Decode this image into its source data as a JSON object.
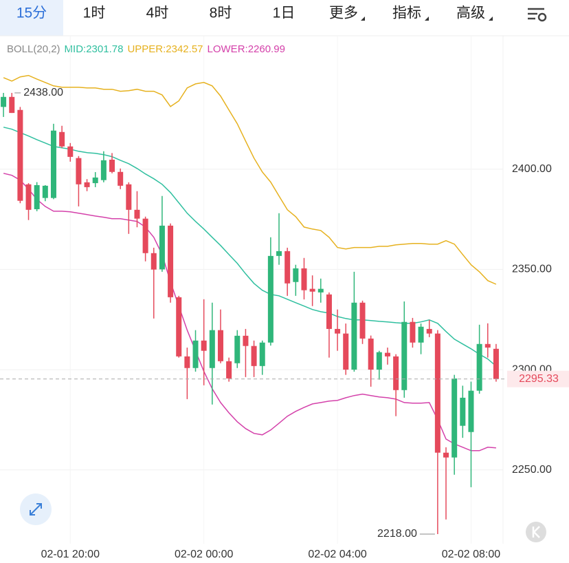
{
  "tabs": [
    "15分",
    "1时",
    "4时",
    "8时",
    "1日",
    "更多",
    "指标",
    "高级"
  ],
  "chart_data": {
    "type": "candlestick",
    "indicator": {
      "title": "BOLL(20,2)",
      "series": [
        {
          "name": "MID:2301.78",
          "color": "#2fbf9f",
          "values": [
            2420.9,
            2419.9,
            2418.2,
            2416.5,
            2414.7,
            2413.0,
            2411.3,
            2410.6,
            2409.9,
            2408.9,
            2408.2,
            2407.9,
            2407.2,
            2406.2,
            2404.4,
            2402.7,
            2400.3,
            2397.6,
            2395.2,
            2392.4,
            2388.3,
            2383.2,
            2378.0,
            2373.9,
            2370.1,
            2366.0,
            2361.9,
            2357.4,
            2353.0,
            2347.8,
            2343.0,
            2339.6,
            2337.5,
            2336.8,
            2335.1,
            2333.4,
            2331.7,
            2330.0,
            2328.9,
            2328.2,
            2326.5,
            2325.5,
            2324.8,
            2324.8,
            2324.5,
            2324.1,
            2323.8,
            2323.4,
            2323.1,
            2323.1,
            2323.8,
            2324.8,
            2323.1,
            2319.0,
            2315.2,
            2312.8,
            2310.4,
            2307.7,
            2305.3,
            2301.78
          ]
        },
        {
          "name": "UPPER:2342.57",
          "color": "#e6b11e",
          "values": [
            2445.6,
            2443.9,
            2446.0,
            2446.7,
            2444.9,
            2443.2,
            2441.5,
            2440.8,
            2440.8,
            2440.8,
            2440.5,
            2440.5,
            2439.8,
            2439.8,
            2438.8,
            2439.1,
            2439.8,
            2438.8,
            2438.8,
            2437.0,
            2431.2,
            2434.0,
            2440.5,
            2442.5,
            2443.2,
            2441.5,
            2436.4,
            2429.5,
            2422.6,
            2414.0,
            2405.5,
            2398.6,
            2393.5,
            2386.6,
            2379.7,
            2376.3,
            2371.1,
            2370.1,
            2369.4,
            2366.0,
            2360.9,
            2360.2,
            2360.9,
            2360.9,
            2360.9,
            2361.5,
            2361.5,
            2362.2,
            2362.6,
            2362.9,
            2362.9,
            2362.6,
            2362.6,
            2364.3,
            2362.6,
            2357.4,
            2352.3,
            2348.8,
            2344.4,
            2342.57
          ]
        },
        {
          "name": "LOWER:2260.99",
          "color": "#d441aa",
          "values": [
            2397.9,
            2396.9,
            2394.5,
            2390.0,
            2384.9,
            2381.4,
            2379.0,
            2379.0,
            2378.7,
            2378.0,
            2377.3,
            2376.6,
            2376.0,
            2375.3,
            2375.3,
            2374.6,
            2373.9,
            2371.1,
            2366.0,
            2357.4,
            2343.7,
            2331.7,
            2319.7,
            2309.4,
            2299.1,
            2290.5,
            2283.6,
            2278.5,
            2274.0,
            2270.6,
            2268.2,
            2267.5,
            2269.9,
            2273.3,
            2276.8,
            2279.2,
            2281.2,
            2282.9,
            2283.6,
            2284.3,
            2284.7,
            2286.0,
            2287.1,
            2287.8,
            2287.1,
            2286.4,
            2286.0,
            2285.3,
            2283.6,
            2283.3,
            2283.3,
            2283.6,
            2275.1,
            2265.4,
            2263.0,
            2261.3,
            2259.6,
            2259.6,
            2261.3,
            2260.99
          ]
        }
      ]
    },
    "categories": [
      null,
      null,
      null,
      null,
      null,
      null,
      null,
      null,
      "02-01 20:00",
      null,
      null,
      null,
      null,
      null,
      null,
      null,
      null,
      null,
      null,
      null,
      null,
      null,
      null,
      null,
      "02-02 00:00",
      null,
      null,
      null,
      null,
      null,
      null,
      null,
      null,
      null,
      null,
      null,
      null,
      null,
      null,
      null,
      "02-02 04:00",
      null,
      null,
      null,
      null,
      null,
      null,
      null,
      null,
      null,
      null,
      null,
      null,
      null,
      null,
      null,
      "02-02 08:00",
      null,
      null,
      null
    ],
    "open": [
      2431,
      2436,
      2429.5,
      2392.4,
      2380,
      2385.6,
      2385.6,
      2418.5,
      2411.3,
      2405.5,
      2393.4,
      2393,
      2394.5,
      2404.7,
      2398.6,
      2392.4,
      2379.7,
      2375.3,
      2358.1,
      2350,
      2371.8,
      2336.1,
      2306.6,
      2300.8,
      2314.5,
      2300.8,
      2319.7,
      2304.2,
      2303.2,
      2316.9,
      2311.8,
      2301.8,
      2313.5,
      2356.7,
      2359.1,
      2343.7,
      2350.5,
      2340.3,
      2338.5,
      2337.5,
      2320.3,
      2318,
      2300,
      2333.4,
      2315.5,
      2300,
      2308.4,
      2306.6,
      2289.8,
      2323.8,
      2313.5,
      2320.3,
      2318,
      2258.6,
      2256.2,
      2272,
      2268.9,
      2289.5,
      2312.8,
      2310.4
    ],
    "high": [
      2438,
      2438,
      2431,
      2393,
      2393.5,
      2392,
      2422.6,
      2421.6,
      2413,
      2406.5,
      2395,
      2398.5,
      2408.9,
      2408,
      2400.3,
      2393.4,
      2389,
      2376.3,
      2360.8,
      2386.6,
      2372.9,
      2336.8,
      2311,
      2319.7,
      2335.1,
      2333.4,
      2330,
      2306,
      2319.7,
      2320.3,
      2314.5,
      2314.5,
      2366,
      2378,
      2360.8,
      2352.3,
      2355.7,
      2347,
      2345.4,
      2338.5,
      2330,
      2323,
      2348.8,
      2334.4,
      2317,
      2309.4,
      2311,
      2307.7,
      2334,
      2325.8,
      2323,
      2324.8,
      2319.7,
      2261.3,
      2297.4,
      2292,
      2294,
      2322.4,
      2323.1,
      2312.8
    ],
    "low": [
      2426,
      2428,
      2383,
      2374.6,
      2379,
      2384,
      2385,
      2410.6,
      2403.7,
      2381.4,
      2389,
      2391,
      2393.4,
      2397.9,
      2390,
      2367.7,
      2371,
      2354,
      2325.5,
      2348.8,
      2333.4,
      2306,
      2285.3,
      2299,
      2292.2,
      2282.6,
      2303.2,
      2294,
      2300.8,
      2296.3,
      2296.3,
      2297.4,
      2312,
      2352.3,
      2336.8,
      2336.8,
      2335,
      2331.7,
      2333.4,
      2306,
      2309.4,
      2297.4,
      2299,
      2312.8,
      2291.5,
      2295,
      2302.5,
      2276.8,
      2286,
      2311,
      2307.7,
      2316.2,
      2218,
      2225.3,
      2247.6,
      2266,
      2241.4,
      2288,
      2306,
      2294
    ],
    "close": [
      2436,
      2428,
      2384.2,
      2379.7,
      2392,
      2391.7,
      2419.2,
      2411.3,
      2406.1,
      2392.4,
      2391,
      2395.8,
      2404.4,
      2398.6,
      2391.7,
      2379.7,
      2375.3,
      2358.1,
      2349.9,
      2371.8,
      2336.1,
      2306.6,
      2300.8,
      2314.5,
      2309.4,
      2319.7,
      2304.2,
      2295.6,
      2316.9,
      2311.8,
      2301.8,
      2313.5,
      2356.7,
      2359.1,
      2343,
      2350.5,
      2339.6,
      2338.9,
      2340.3,
      2320.3,
      2318,
      2300,
      2333.4,
      2315.5,
      2300,
      2308.7,
      2306.6,
      2289.8,
      2323.8,
      2313.5,
      2321.4,
      2318,
      2258.6,
      2256.2,
      2295.6,
      2286,
      2289.5,
      2312.8,
      2311,
      2295.33
    ],
    "up_color": "#2fb67a",
    "down_color": "#e5495b",
    "ylim": [
      2213.2,
      2450
    ],
    "yticks": [
      {
        "value": 2250,
        "label": "2250.00"
      },
      {
        "value": 2300,
        "label": "2300.00"
      },
      {
        "value": 2350,
        "label": "2350.00"
      },
      {
        "value": 2400,
        "label": "2400.00"
      }
    ],
    "grid": true,
    "last_price": 2295.33,
    "annotations": [
      {
        "value": 2438,
        "label": "2438.00"
      },
      {
        "value": 2218,
        "label": "2218.00"
      }
    ]
  }
}
